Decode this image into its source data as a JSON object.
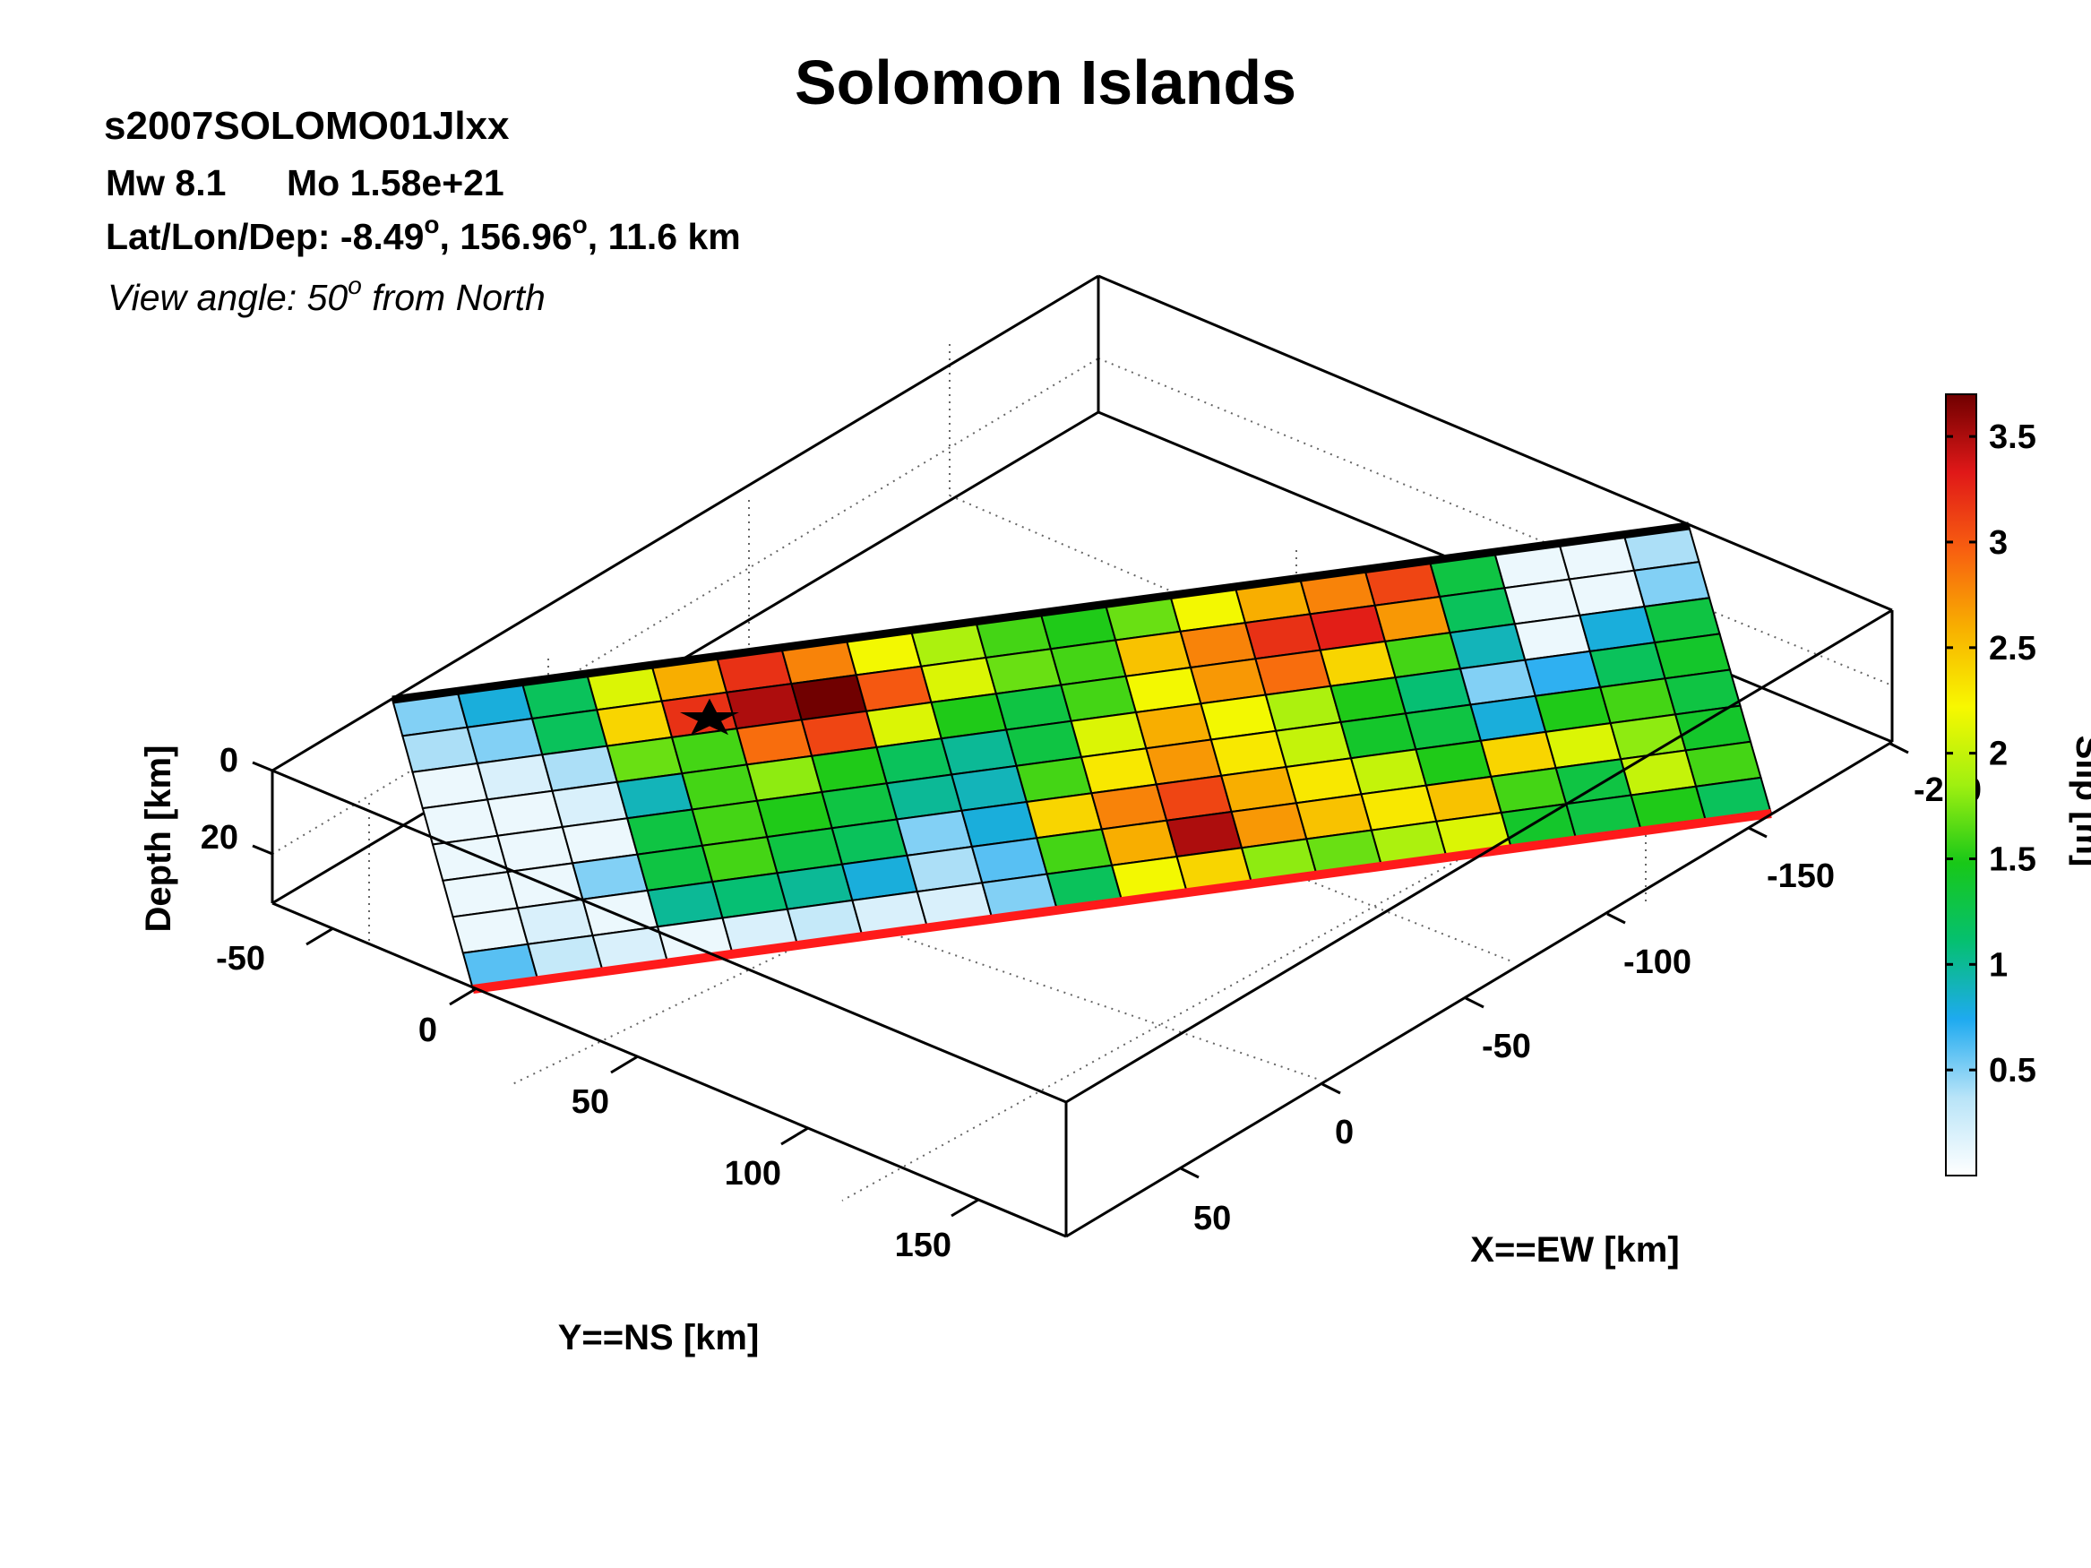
{
  "header": {
    "title": "Solomon Islands",
    "event_id": "s2007SOLOMO01Jlxx",
    "mw_text": "Mw 8.1",
    "mo_text": "Mo 1.58e+21",
    "location_prefix": "Lat/Lon/Dep: -8.49",
    "location_mid": ", 156.96",
    "location_suffix": ", 11.6 km",
    "degree_mark": "o",
    "view_prefix": "View angle:  50",
    "view_suffix": " from North"
  },
  "chart_data": {
    "type": "heatmap",
    "title": "Solomon Islands",
    "xlabel": "X==EW [km]",
    "ylabel": "Y==NS [km]",
    "zlabel": "Depth [km]",
    "colorbar_label": "Slip [m]",
    "x_ticks": [
      "50",
      "0",
      "-50",
      "-100",
      "-150",
      "-200"
    ],
    "y_ticks": [
      "-50",
      "0",
      "50",
      "100",
      "150"
    ],
    "z_ticks": [
      "0",
      "20"
    ],
    "colorbar_ticks": [
      0.5,
      1,
      1.5,
      2,
      2.5,
      3,
      3.5
    ],
    "colorbar_tick_labels": [
      "0.5",
      "1",
      "1.5",
      "2",
      "2.5",
      "3",
      "3.5"
    ],
    "colorbar_range": [
      0,
      3.7
    ],
    "grid": true,
    "view_angle_deg": 50,
    "hypocenter_marker": "black star",
    "top_edge_color": "#000000",
    "bottom_edge_color": "#ff1a1a",
    "colormap_stops": [
      "#ffffff",
      "#b8e4f8",
      "#1eaaf0",
      "#05c070",
      "#18c818",
      "#a0f010",
      "#f8f800",
      "#f8b000",
      "#f86010",
      "#e01818",
      "#700000"
    ],
    "n_rows": 8,
    "n_cols": 20,
    "slip": [
      [
        0.5,
        0.8,
        1.2,
        2.1,
        2.6,
        3.2,
        2.8,
        2.2,
        1.9,
        1.6,
        1.5,
        1.7,
        2.2,
        2.6,
        2.8,
        3.1,
        1.3,
        0.1,
        0.1,
        0.4
      ],
      [
        0.4,
        0.5,
        1.2,
        2.4,
        3.2,
        3.5,
        3.8,
        3.0,
        2.1,
        1.7,
        1.6,
        2.5,
        2.8,
        3.2,
        3.3,
        2.7,
        1.2,
        0.1,
        0.1,
        0.5
      ],
      [
        0.1,
        0.2,
        0.4,
        1.7,
        1.6,
        2.9,
        3.1,
        2.1,
        1.5,
        1.3,
        1.6,
        2.2,
        2.7,
        2.9,
        2.4,
        1.6,
        0.9,
        0.1,
        0.8,
        1.3
      ],
      [
        0.1,
        0.1,
        0.2,
        0.9,
        1.6,
        1.8,
        1.5,
        1.2,
        1.0,
        1.3,
        2.1,
        2.6,
        2.2,
        1.9,
        1.5,
        1.1,
        0.5,
        0.7,
        1.2,
        1.4
      ],
      [
        0.1,
        0.1,
        0.1,
        1.3,
        1.6,
        1.5,
        1.3,
        1.0,
        0.9,
        1.6,
        2.3,
        2.7,
        2.3,
        2.0,
        1.4,
        1.3,
        0.8,
        1.5,
        1.6,
        1.3
      ],
      [
        0.1,
        0.1,
        0.5,
        1.3,
        1.6,
        1.3,
        1.2,
        0.5,
        0.8,
        2.4,
        2.8,
        3.1,
        2.6,
        2.3,
        2.0,
        1.5,
        2.4,
        2.1,
        1.8,
        1.4
      ],
      [
        0.1,
        0.2,
        0.1,
        1.0,
        1.1,
        1.0,
        0.8,
        0.4,
        0.6,
        1.6,
        2.6,
        3.5,
        2.7,
        2.5,
        2.3,
        2.5,
        1.6,
        1.3,
        2.0,
        1.6
      ],
      [
        0.6,
        0.3,
        0.2,
        0.1,
        0.2,
        0.3,
        0.2,
        0.2,
        0.5,
        1.2,
        2.2,
        2.4,
        1.8,
        1.7,
        1.9,
        2.1,
        1.4,
        1.3,
        1.5,
        1.2
      ]
    ]
  }
}
